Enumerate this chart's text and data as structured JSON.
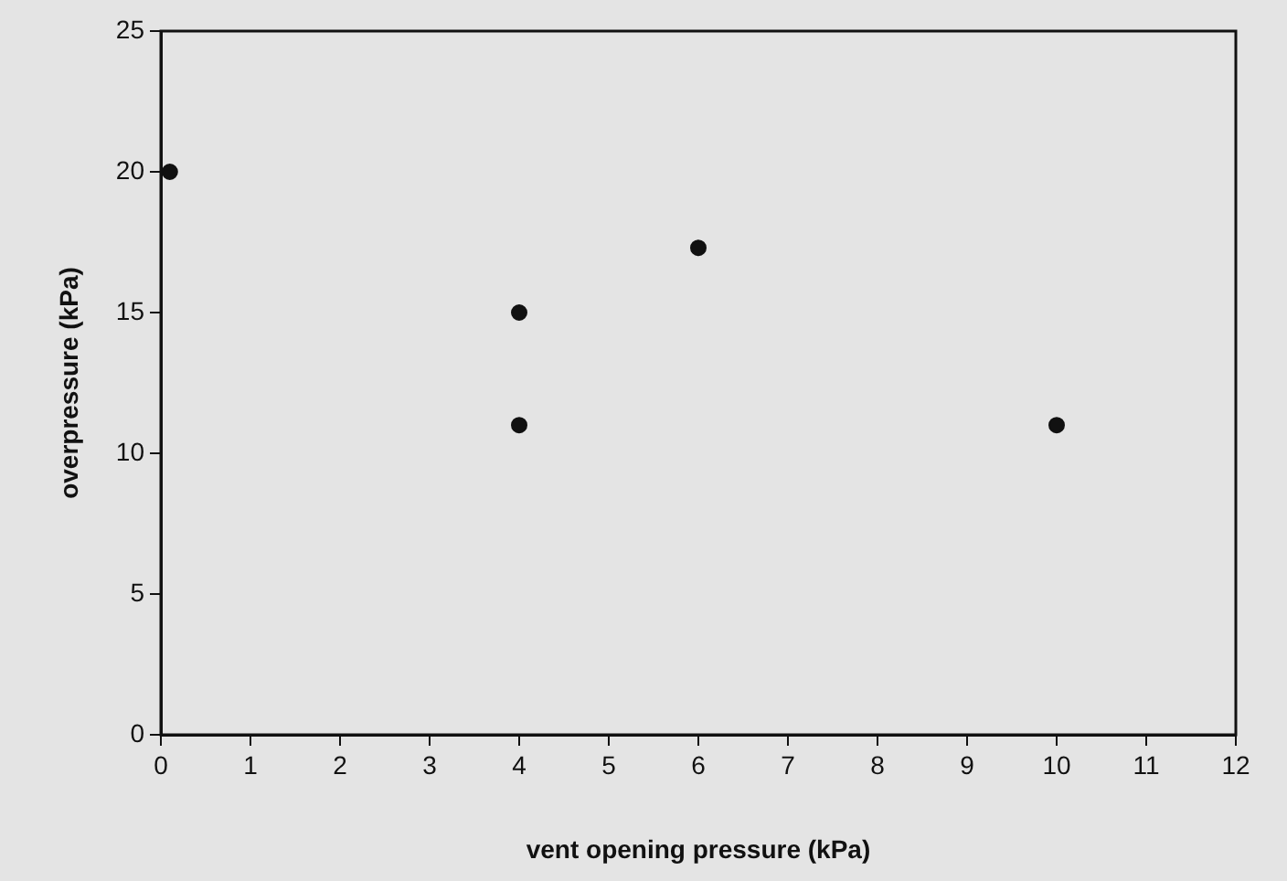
{
  "chart_data": {
    "type": "scatter",
    "xlabel": "vent opening pressure (kPa)",
    "ylabel": "overpressure (kPa)",
    "x": [
      0.1,
      4,
      4,
      6,
      10
    ],
    "values": [
      20,
      15,
      11,
      17.3,
      11
    ],
    "color": "#111111",
    "marker": "circle",
    "xlim": [
      0,
      12
    ],
    "xticks": [
      0,
      1,
      2,
      3,
      4,
      5,
      6,
      7,
      8,
      9,
      10,
      11,
      12
    ],
    "ylim": [
      0,
      25
    ],
    "yticks": [
      0,
      5,
      10,
      15,
      20,
      25
    ],
    "grid": false,
    "legend": false
  }
}
